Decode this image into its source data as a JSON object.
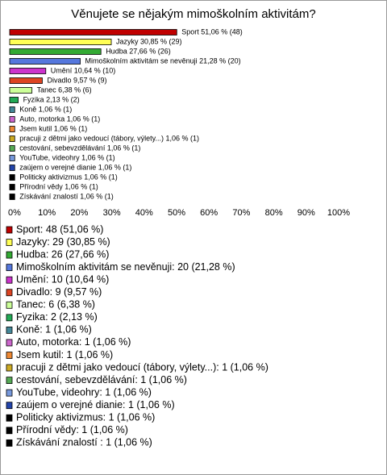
{
  "chart_data": {
    "type": "bar",
    "orientation": "horizontal",
    "title": "Věnujete se nějakým mimoškolním aktivitám?",
    "categories": [
      "Sport",
      "Jazyky",
      "Hudba",
      "Mimoškolním aktivitám se nevěnuji",
      "Umění",
      "Divadlo",
      "Tanec",
      "Fyzika",
      "Koně",
      "Auto, motorka",
      "Jsem kutil",
      "pracuji z dětmi jako vedoucí (tábory, výlety...)",
      "cestování, sebevzdělávání",
      "YouTube, videohry",
      "zaújem o verejné dianie",
      "Politicky aktivizmus",
      "Přírodní vědy",
      "Získávání znalostí "
    ],
    "values": [
      51.06,
      30.85,
      27.66,
      21.28,
      10.64,
      9.57,
      6.38,
      2.13,
      1.06,
      1.06,
      1.06,
      1.06,
      1.06,
      1.06,
      1.06,
      1.06,
      1.06,
      1.06
    ],
    "value_labels": [
      "Sport 51,06 % (48)",
      "Jazyky 30,85 % (29)",
      "Hudba 27,66 % (26)",
      "Mimoškolním aktivitám se nevěnuji 21,28 % (20)",
      "Umění 10,64 % (10)",
      "Divadlo 9,57 % (9)",
      "Tanec 6,38 % (6)",
      "Fyzika 2,13 % (2)",
      "Koně 1,06 % (1)",
      "Auto, motorka 1,06 % (1)",
      "Jsem kutil 1,06 % (1)",
      "pracuji z dětmi jako vedoucí (tábory, výlety...) 1,06 % (1)",
      "cestování, sebevzdělávání 1,06 % (1)",
      "YouTube, videohry 1,06 % (1)",
      "zaújem o verejné dianie 1,06 % (1)",
      "Politicky aktivizmus 1,06 % (1)",
      "Přírodní vědy 1,06 % (1)",
      "Získávání znalostí  1,06 % (1)"
    ],
    "legend_labels": [
      "Sport: 48 (51,06 %)",
      "Jazyky: 29 (30,85 %)",
      "Hudba: 26 (27,66 %)",
      "Mimoškolním aktivitám se nevěnuji: 20 (21,28 %)",
      "Umění: 10 (10,64 %)",
      "Divadlo: 9 (9,57 %)",
      "Tanec: 6 (6,38 %)",
      "Fyzika: 2 (2,13 %)",
      "Koně: 1 (1,06 %)",
      "Auto, motorka: 1 (1,06 %)",
      "Jsem kutil: 1 (1,06 %)",
      "pracuji z dětmi jako vedoucí (tábory, výlety...): 1 (1,06 %)",
      "cestování, sebevzdělávání: 1 (1,06 %)",
      "YouTube, videohry: 1 (1,06 %)",
      "zaújem o verejné dianie: 1 (1,06 %)",
      "Politicky aktivizmus: 1 (1,06 %)",
      "Přírodní vědy: 1 (1,06 %)",
      "Získávání znalostí : 1 (1,06 %)"
    ],
    "colors": [
      "#c00000",
      "#ffff55",
      "#33aa33",
      "#5577dd",
      "#cc33cc",
      "#dd4422",
      "#ccff99",
      "#22aa55",
      "#448899",
      "#cc66cc",
      "#ee8833",
      "#ccaa22",
      "#55aa55",
      "#7799dd",
      "#2244aa",
      "#000000",
      "#000000",
      "#000000"
    ],
    "xlim": [
      0,
      100
    ],
    "xticks": [
      {
        "value": 0,
        "label": "0%"
      },
      {
        "value": 10,
        "label": "10%"
      },
      {
        "value": 20,
        "label": "20%"
      },
      {
        "value": 30,
        "label": "30%"
      },
      {
        "value": 40,
        "label": "40%"
      },
      {
        "value": 50,
        "label": "50%"
      },
      {
        "value": 60,
        "label": "60%"
      },
      {
        "value": 70,
        "label": "70%"
      },
      {
        "value": 80,
        "label": "80%"
      },
      {
        "value": 90,
        "label": "90%"
      },
      {
        "value": 100,
        "label": "100%"
      }
    ]
  }
}
